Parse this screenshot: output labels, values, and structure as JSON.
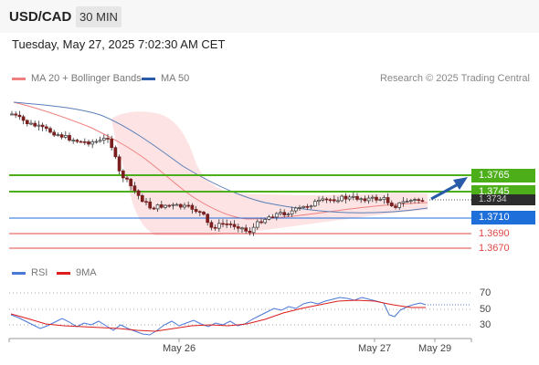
{
  "header": {
    "symbol": "USD/CAD",
    "timeframe": "30 MIN",
    "datetime": "Tuesday, May 27, 2025 7:02:30 AM CET"
  },
  "legend": {
    "items": [
      {
        "label": "MA 20 + Bollinger Bands",
        "color": "#f08080"
      },
      {
        "label": "MA 50",
        "color": "#2a5ba8"
      }
    ],
    "copyright": "Research © 2025 Trading Central"
  },
  "levels": {
    "resistance_2": {
      "value": "1.3765",
      "color": "#4caf1a"
    },
    "resistance_1": {
      "value": "1.3745",
      "color": "#4caf1a"
    },
    "last_price": {
      "value": "1.3734",
      "color": "#2d2d2d"
    },
    "pivot": {
      "value": "1.3710",
      "color": "#1f6fdb"
    },
    "support_1": {
      "value": "1.3690",
      "color": "#e04848"
    },
    "support_2": {
      "value": "1.3670",
      "color": "#e04848"
    }
  },
  "indicator": {
    "legend": [
      {
        "label": "RSI",
        "color": "#4a78d6"
      },
      {
        "label": "9MA",
        "color": "#dd1c1c"
      }
    ],
    "ticks": [
      "70",
      "50",
      "30"
    ]
  },
  "x_axis": {
    "labels": [
      "May 26",
      "May 27",
      "May 29"
    ]
  }
}
